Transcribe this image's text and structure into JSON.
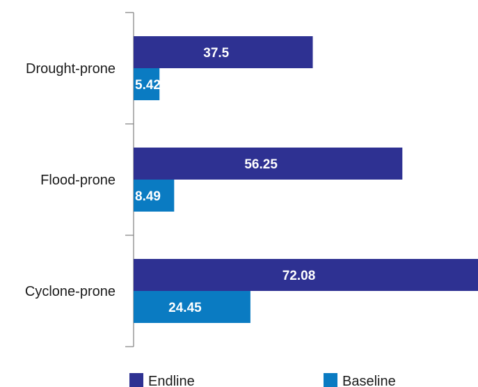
{
  "chart_data": {
    "type": "bar",
    "orientation": "horizontal",
    "categories": [
      "Drought-prone",
      "Flood-prone",
      "Cyclone-prone"
    ],
    "series": [
      {
        "name": "Endline",
        "color": "#2e3192",
        "values": [
          37.5,
          56.25,
          72.08
        ]
      },
      {
        "name": "Baseline",
        "color": "#0a7bc2",
        "values": [
          5.42,
          8.49,
          24.45
        ]
      }
    ],
    "data_labels": {
      "Endline": [
        "37.5",
        "56.25",
        "72.08"
      ],
      "Baseline": [
        "5.42",
        "8.49",
        "24.45"
      ]
    },
    "xlim": [
      0,
      72.08
    ],
    "title": "",
    "xlabel": "",
    "ylabel": "",
    "grid": false,
    "legend_position": "bottom"
  }
}
